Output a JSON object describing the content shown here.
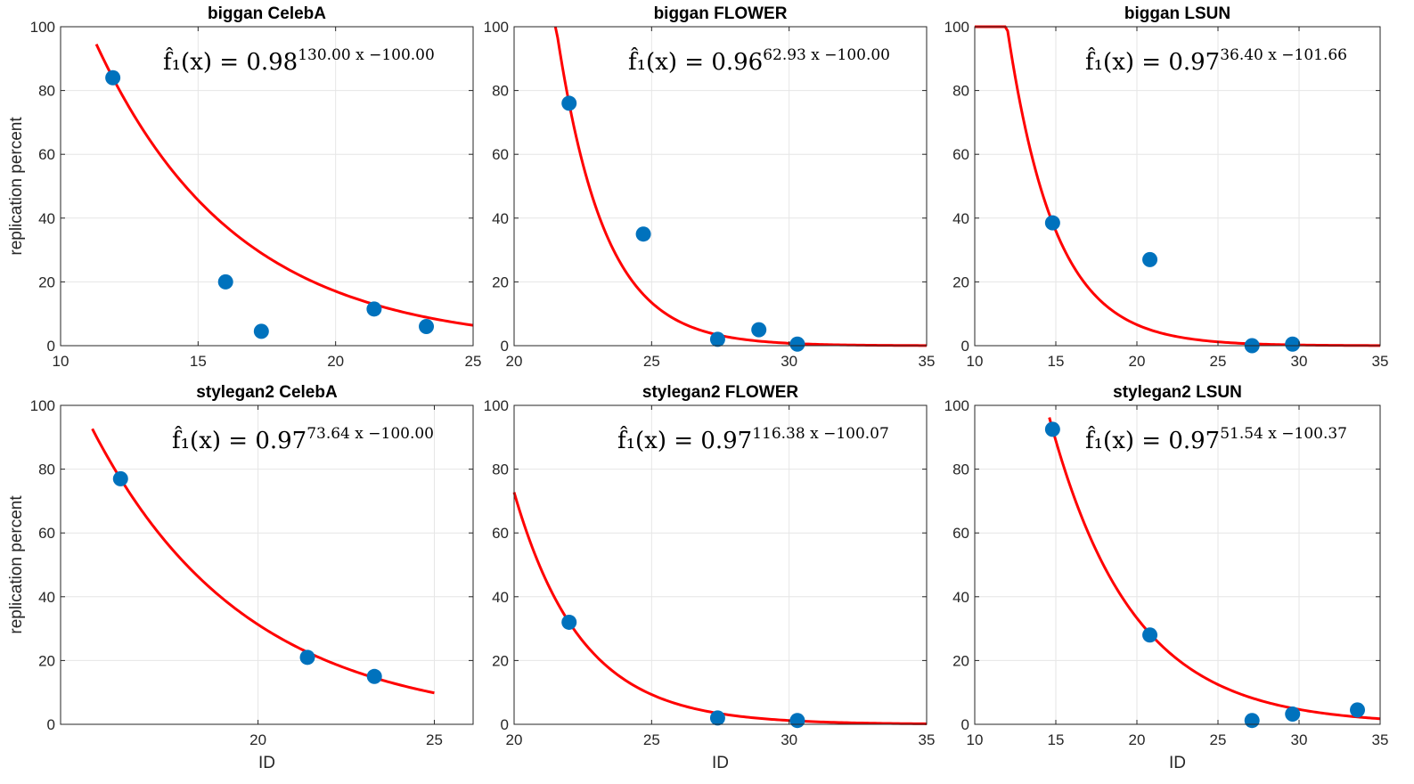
{
  "chart_data": [
    {
      "type": "scatter",
      "title": "biggan CelebA",
      "xlabel": "",
      "ylabel": "replication percent",
      "xlim": [
        10,
        25
      ],
      "ylim": [
        0,
        100
      ],
      "xticks": [
        "10",
        "15",
        "20",
        "25"
      ],
      "yticks": [
        "0",
        "20",
        "40",
        "60",
        "80",
        "100"
      ],
      "grid": true,
      "points": {
        "x": [
          11.9,
          16.0,
          17.3,
          21.4,
          23.3
        ],
        "y": [
          84,
          20,
          4.5,
          11.5,
          6
        ]
      },
      "fit": {
        "base": 0.98,
        "a": 130.0,
        "b": -100.0,
        "x_range": [
          11.3,
          25
        ]
      },
      "formula": {
        "lhs": "f̂₁(x) = ",
        "base": "0.98",
        "exponent": "130.00 x −100.00"
      }
    },
    {
      "type": "scatter",
      "title": "biggan FLOWER",
      "xlabel": "",
      "ylabel": "",
      "xlim": [
        20,
        35
      ],
      "ylim": [
        0,
        100
      ],
      "xticks": [
        "20",
        "25",
        "30",
        "35"
      ],
      "yticks": [
        "0",
        "20",
        "40",
        "60",
        "80",
        "100"
      ],
      "grid": true,
      "points": {
        "x": [
          22.0,
          24.7,
          27.4,
          28.9,
          30.3
        ],
        "y": [
          76,
          35,
          2,
          5,
          0.5
        ]
      },
      "fit": {
        "base": 0.96,
        "a": 62.93,
        "b": -100.0,
        "x_range": [
          21.5,
          35
        ]
      },
      "formula": {
        "lhs": "f̂₁(x) = ",
        "base": "0.96",
        "exponent": "62.93 x −100.00"
      }
    },
    {
      "type": "scatter",
      "title": "biggan LSUN",
      "xlabel": "",
      "ylabel": "",
      "xlim": [
        10,
        35
      ],
      "ylim": [
        0,
        100
      ],
      "xticks": [
        "10",
        "15",
        "20",
        "25",
        "30",
        "35"
      ],
      "yticks": [
        "0",
        "20",
        "40",
        "60",
        "80",
        "100"
      ],
      "grid": true,
      "points": {
        "x": [
          14.8,
          20.8,
          27.1,
          29.6
        ],
        "y": [
          38.5,
          27,
          0,
          0.5
        ]
      },
      "fit": {
        "base": 0.97,
        "a": 36.4,
        "b": -101.66,
        "x_range": [
          10,
          35
        ]
      },
      "formula": {
        "lhs": "f̂₁(x) = ",
        "base": "0.97",
        "exponent": "36.40 x −101.66"
      }
    },
    {
      "type": "scatter",
      "title": "stylegan2 CelebA",
      "xlabel": "ID",
      "ylabel": "replication percent",
      "xlim": [
        14.4,
        26.1
      ],
      "ylim": [
        0,
        100
      ],
      "xticks": [
        "20",
        "25"
      ],
      "xtick_values": [
        20,
        25
      ],
      "yticks": [
        "0",
        "20",
        "40",
        "60",
        "80",
        "100"
      ],
      "grid": true,
      "points": {
        "x": [
          16.1,
          21.4,
          23.3
        ],
        "y": [
          77,
          21,
          15
        ]
      },
      "fit": {
        "base": 0.97,
        "a": 73.64,
        "b": -100.0,
        "x_range": [
          15.3,
          25
        ]
      },
      "formula": {
        "lhs": "f̂₁(x) = ",
        "base": "0.97",
        "exponent": "73.64 x −100.00"
      }
    },
    {
      "type": "scatter",
      "title": "stylegan2 FLOWER",
      "xlabel": "ID",
      "ylabel": "",
      "xlim": [
        20,
        35
      ],
      "ylim": [
        0,
        100
      ],
      "xticks": [
        "20",
        "25",
        "30",
        "35"
      ],
      "yticks": [
        "0",
        "20",
        "40",
        "60",
        "80",
        "100"
      ],
      "grid": true,
      "points": {
        "x": [
          22.0,
          27.4,
          30.3
        ],
        "y": [
          32,
          2,
          1.2
        ]
      },
      "fit": {
        "base": 0.97,
        "a": 116.38,
        "b": -100.07,
        "x_range": [
          20,
          35
        ]
      },
      "formula": {
        "lhs": "f̂₁(x) = ",
        "base": "0.97",
        "exponent": "116.38 x −100.07"
      }
    },
    {
      "type": "scatter",
      "title": "stylegan2 LSUN",
      "xlabel": "ID",
      "ylabel": "",
      "xlim": [
        10,
        35
      ],
      "ylim": [
        0,
        100
      ],
      "xticks": [
        "10",
        "15",
        "20",
        "25",
        "30",
        "35"
      ],
      "yticks": [
        "0",
        "20",
        "40",
        "60",
        "80",
        "100"
      ],
      "grid": true,
      "points": {
        "x": [
          14.8,
          20.8,
          27.1,
          29.6,
          33.6
        ],
        "y": [
          92.5,
          28,
          1.2,
          3.2,
          4.5
        ]
      },
      "fit": {
        "base": 0.97,
        "a": 51.54,
        "b": -100.37,
        "x_range": [
          14.6,
          35
        ]
      },
      "formula": {
        "lhs": "f̂₁(x) = ",
        "base": "0.97",
        "exponent": "51.54 x −100.37"
      }
    }
  ],
  "colors": {
    "marker": "#0072BD",
    "fit_line": "#FF0000",
    "grid": "#e6e6e6",
    "axes": "#262626"
  }
}
